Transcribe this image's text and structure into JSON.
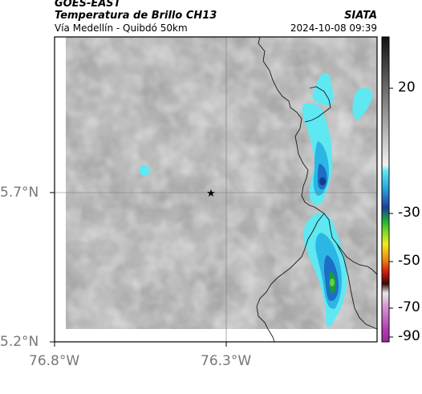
{
  "header": {
    "satellite": "GOES-EAST",
    "product": "Temperatura de Brillo CH13",
    "route": "Vía Medellín - Quibdó 50km",
    "organization": "SIATA",
    "datetime": "2024-10-08 09:39"
  },
  "axes": {
    "lat_labels": [
      "5.7°N",
      "5.2°N"
    ],
    "lon_labels": [
      "76.8°W",
      "76.3°W"
    ]
  },
  "colorbar": {
    "tick_labels": [
      "20",
      "-30",
      "-50",
      "-70",
      "-90"
    ]
  },
  "map": {
    "marker_icon": "star-icon",
    "cloud_colors": [
      "#5fe8f2",
      "#2cb6e4",
      "#1b6fc4",
      "#153c8a",
      "#1c9a3c",
      "#61d14a"
    ]
  }
}
